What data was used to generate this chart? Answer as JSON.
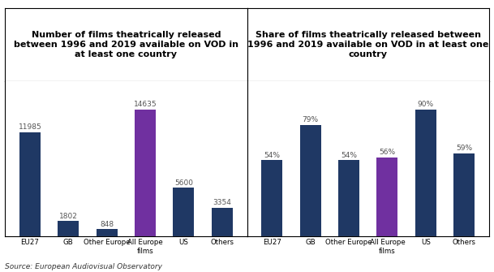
{
  "left_title": "Number of films theatrically released\nbetween 1996 and 2019 available on VOD in\nat least one country",
  "right_title": "Share of films theatrically released between\n1996 and 2019 available on VOD in at least one\ncountry",
  "categories": [
    "EU27",
    "GB",
    "Other Europe",
    "All Europe\nfilms",
    "US",
    "Others"
  ],
  "left_values": [
    11985,
    1802,
    848,
    14635,
    5600,
    3354
  ],
  "right_values": [
    54,
    79,
    54,
    56,
    90,
    59
  ],
  "left_labels": [
    "11985",
    "1802",
    "848",
    "14635",
    "5600",
    "3354"
  ],
  "right_labels": [
    "54%",
    "79%",
    "54%",
    "56%",
    "90%",
    "59%"
  ],
  "bar_colors": [
    "#1f3864",
    "#1f3864",
    "#1f3864",
    "#7030a0",
    "#1f3864",
    "#1f3864"
  ],
  "source": "Source: European Audiovisual Observatory",
  "bg_color": "#ffffff",
  "label_color": "#555555",
  "title_fontsize": 8.0,
  "label_fontsize": 6.5,
  "tick_fontsize": 6.2,
  "border_color": "#000000",
  "axis_line_color": "#aaaaaa"
}
